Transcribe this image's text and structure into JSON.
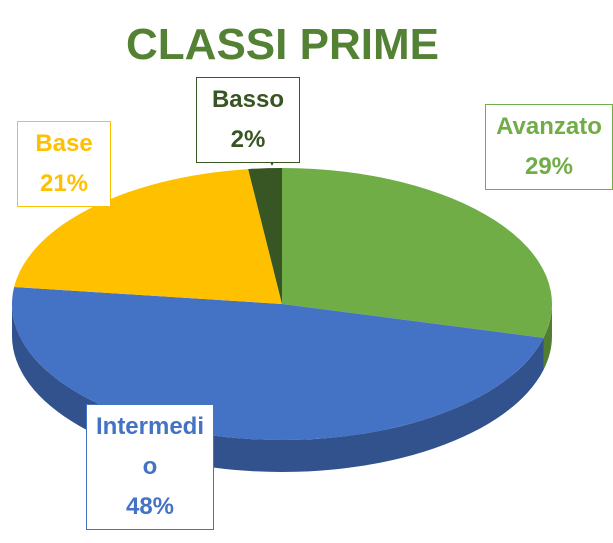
{
  "chart_data": {
    "type": "pie",
    "title": "CLASSI PRIME",
    "categories": [
      "Avanzato",
      "Intermedio",
      "Base",
      "Basso"
    ],
    "values": [
      29,
      48,
      21,
      2
    ],
    "value_labels": [
      "29%",
      "48%",
      "21%",
      "2%"
    ],
    "colors": [
      "#70ad47",
      "#4472c4",
      "#ffc000",
      "#375623"
    ]
  }
}
